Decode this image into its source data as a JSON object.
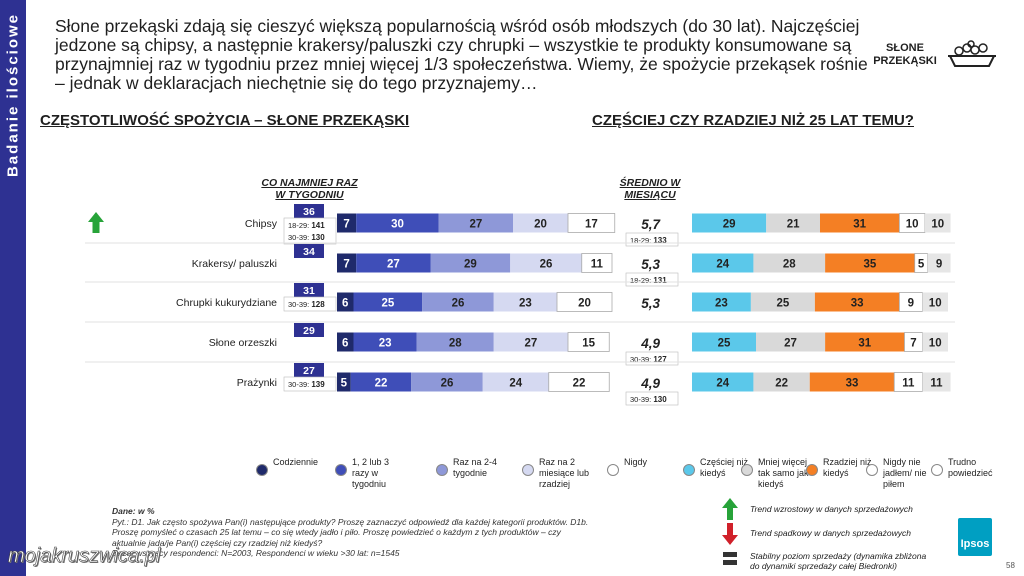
{
  "sidebar_label": "Badanie ilościowe",
  "headline": "Słone przekąski zdają się cieszyć większą popularnością wśród osób młodszych (do 30 lat). Najczęściej jedzone są chipsy, a następnie krakersy/paluszki czy chrupki – wszystkie te produkty konsumowane są przynajmniej raz w tygodniu przez mniej więcej 1/3 społeczeństwa. Wiemy, że spożycie przekąsek rośnie – jednak w deklaracjach niechętnie się do tego przyznajemy…",
  "badge_line1": "SŁONE",
  "badge_line2": "PRZEKĄSKI",
  "section_left": "CZĘSTOTLIWOŚĆ SPOŻYCIA – SŁONE PRZEKĄSKI",
  "section_right": "CZĘŚCIEJ CZY RZADZIEJ NIŻ 25 LAT TEMU?",
  "col_weekly_line1": "CO NAJMNIEJ RAZ",
  "col_weekly_line2": "W TYGODNIU",
  "col_monthly_line1": "ŚREDNIO W",
  "col_monthly_line2": "MIESIĄCU",
  "colors": {
    "sidebar": "#2e3192",
    "daily": "#1f2a6b",
    "weekly": "#3f4eb8",
    "twice_four": "#8e98d8",
    "monthly": "#d5d9f1",
    "never": "#ffffff",
    "more": "#5bc8ea",
    "same": "#d9d9d9",
    "less": "#f47f24",
    "never_ate": "#ffffff",
    "dont_know": "#e6e6e6"
  },
  "chart_data": [
    {
      "type": "bar",
      "stacked": true,
      "orientation": "horizontal",
      "title": "CZĘSTOTLIWOŚĆ SPOŻYCIA – SŁONE PRZEKĄSKI",
      "categories": [
        "Chipsy",
        "Krakersy/ paluszki",
        "Chrupki kukurydziane",
        "Słone orzeszki",
        "Prażynki"
      ],
      "series": [
        {
          "name": "Codziennie",
          "values": [
            7,
            7,
            6,
            6,
            5
          ]
        },
        {
          "name": "1, 2 lub 3 razy w tygodniu",
          "values": [
            30,
            27,
            25,
            23,
            22
          ]
        },
        {
          "name": "Raz na 2-4 tygodnie",
          "values": [
            27,
            29,
            26,
            28,
            26
          ]
        },
        {
          "name": "Raz na 2 miesiące lub rzadziej",
          "values": [
            20,
            26,
            23,
            27,
            24
          ]
        },
        {
          "name": "Nigdy",
          "values": [
            17,
            11,
            20,
            15,
            22
          ]
        }
      ],
      "weekly_total": [
        36,
        34,
        31,
        29,
        27
      ],
      "weekly_subgroups": [
        [
          {
            "label": "18-29:",
            "value": "141"
          },
          {
            "label": "30-39:",
            "value": "130"
          }
        ],
        [],
        [
          {
            "label": "30-39:",
            "value": "128"
          }
        ],
        [],
        [
          {
            "label": "30-39:",
            "value": "139"
          }
        ]
      ],
      "monthly_average": [
        "5,7",
        "5,3",
        "5,3",
        "4,9",
        "4,9"
      ],
      "monthly_subgroups": [
        [
          {
            "label": "18-29:",
            "value": "133"
          }
        ],
        [
          {
            "label": "18-29:",
            "value": "131"
          }
        ],
        [],
        [
          {
            "label": "30-39:",
            "value": "127"
          }
        ],
        [
          {
            "label": "30-39:",
            "value": "130"
          }
        ]
      ],
      "trend": [
        "up",
        "",
        "",
        "",
        ""
      ]
    },
    {
      "type": "bar",
      "stacked": true,
      "orientation": "horizontal",
      "title": "CZĘŚCIEJ CZY RZADZIEJ NIŻ 25 LAT TEMU?",
      "categories": [
        "Chipsy",
        "Krakersy/ paluszki",
        "Chrupki kukurydziane",
        "Słone orzeszki",
        "Prażynki"
      ],
      "series": [
        {
          "name": "Częściej niż kiedyś",
          "values": [
            29,
            24,
            23,
            25,
            24
          ]
        },
        {
          "name": "Mniej więcej tak samo jak kiedyś",
          "values": [
            21,
            28,
            25,
            27,
            22
          ]
        },
        {
          "name": "Rzadziej niż kiedyś",
          "values": [
            31,
            35,
            33,
            31,
            33
          ]
        },
        {
          "name": "Nigdy nie jadłem/ nie piłem",
          "values": [
            10,
            5,
            9,
            7,
            11
          ]
        },
        {
          "name": "Trudno powiedzieć",
          "values": [
            10,
            9,
            10,
            10,
            11
          ]
        }
      ]
    }
  ],
  "legend": [
    {
      "label": "Codziennie",
      "color": "#1f2a6b"
    },
    {
      "label": "1, 2 lub 3 razy w tygodniu",
      "color": "#3f4eb8"
    },
    {
      "label": "Raz na 2-4 tygodnie",
      "color": "#8e98d8"
    },
    {
      "label": "Raz na 2 miesiące lub rzadziej",
      "color": "#d5d9f1"
    },
    {
      "label": "Nigdy",
      "color": "#ffffff"
    },
    {
      "label": "Częściej niż kiedyś",
      "color": "#5bc8ea"
    },
    {
      "label": "Mniej więcej tak samo jak kiedyś",
      "color": "#d9d9d9"
    },
    {
      "label": "Rzadziej niż kiedyś",
      "color": "#f47f24"
    },
    {
      "label": "Nigdy nie jadłem/ nie piłem",
      "color": "#ffffff"
    },
    {
      "label": "Trudno powiedzieć",
      "color": "#ffffff"
    }
  ],
  "notes": {
    "line1": "Dane: w %",
    "line2": "Pyt.: D1. Jak często spożywa Pan(i) następujące produkty? Proszę zaznaczyć odpowiedź dla każdej kategorii produktów. D1b.",
    "line3": "Proszę pomyśleć o czasach 25 lat temu – co się wtedy jadło i piło. Proszę powiedzieć o każdym z tych produktów – czy",
    "line4": "aktualnie jada/je Pan(i) częściej czy rzadziej niż kiedyś?",
    "line5": "Baza: wszyscy respondenci: N=2003, Respondenci w wieku >30 lat: n=1545"
  },
  "trend_legend": [
    {
      "label": "Trend wzrostowy w danych sprzedażowych"
    },
    {
      "label": "Trend spadkowy w danych sprzedażowych"
    },
    {
      "label": "Stabilny poziom sprzedaży (dynamika zbliżona",
      "label2": "do dynamiki sprzedaży całej Biedronki)"
    }
  ],
  "logo": "Ipsos",
  "page_number": "58",
  "watermark": "mojakruszwica.pl"
}
